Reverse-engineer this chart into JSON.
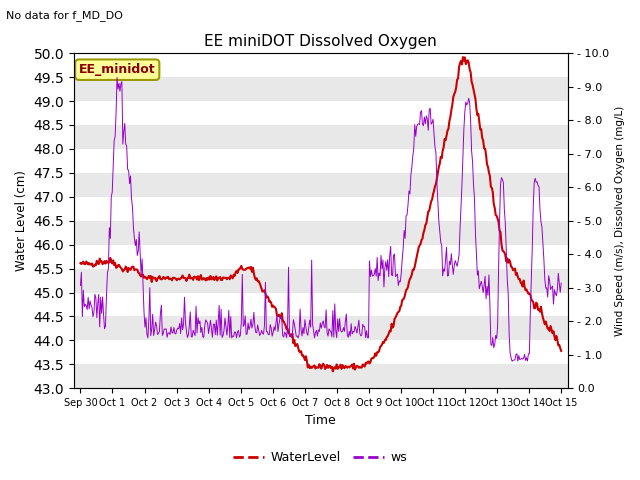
{
  "title": "EE miniDOT Dissolved Oxygen",
  "subtitle": "No data for f_MD_DO",
  "legend_box_label": "EE_minidot",
  "xlabel": "Time",
  "ylabel_left": "Water Level (cm)",
  "ylabel_right": "Wind Speed (m/s), Dissolved Oxygen (mg/L)",
  "ylim_left": [
    43.0,
    50.0
  ],
  "ylim_right": [
    0.0,
    10.0
  ],
  "yticks_left": [
    43.0,
    43.5,
    44.0,
    44.5,
    45.0,
    45.5,
    46.0,
    46.5,
    47.0,
    47.5,
    48.0,
    48.5,
    49.0,
    49.5,
    50.0
  ],
  "yticks_right": [
    0.0,
    1.0,
    2.0,
    3.0,
    4.0,
    5.0,
    6.0,
    7.0,
    8.0,
    9.0,
    10.0
  ],
  "xtick_labels": [
    "Sep 30",
    "Oct 1",
    "Oct 2",
    "Oct 3",
    "Oct 4",
    "Oct 5",
    "Oct 6",
    "Oct 7",
    "Oct 8",
    "Oct 9",
    "Oct 10",
    "Oct 11",
    "Oct 12",
    "Oct 13",
    "Oct 14",
    "Oct 15"
  ],
  "line_wl_color": "#cc0000",
  "line_ws_color": "#9900cc",
  "fig_bg_color": "#ffffff",
  "plot_bg_color": "#ffffff",
  "band_color": "#e8e8e8",
  "legend_box_text_color": "#880000",
  "legend_box_bg": "#ffff99",
  "legend_box_edge": "#999900",
  "wl_label": "WaterLevel",
  "ws_label": "ws",
  "n_points": 500,
  "seed": 42
}
